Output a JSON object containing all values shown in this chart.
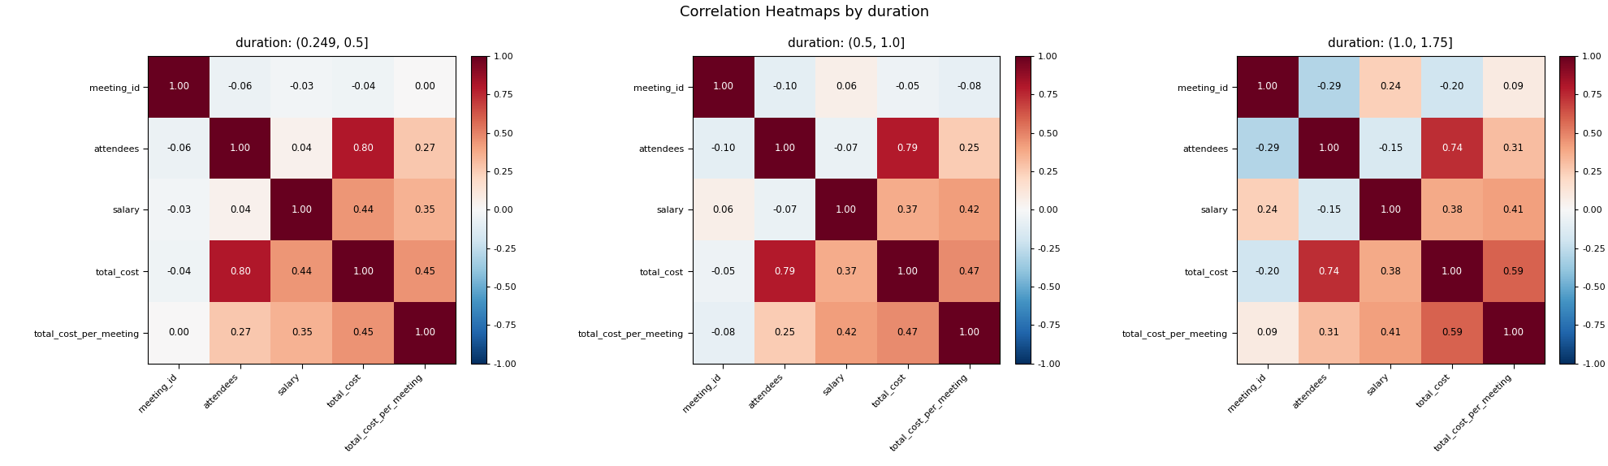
{
  "title": "Correlation Heatmaps by duration",
  "labels": [
    "meeting_id",
    "attendees",
    "salary",
    "total_cost",
    "total_cost_per_meeting"
  ],
  "subplots": [
    {
      "subtitle": "duration: (0.249, 0.5]",
      "matrix": [
        [
          1.0,
          -0.06,
          -0.03,
          -0.04,
          0.0
        ],
        [
          -0.06,
          1.0,
          0.04,
          0.8,
          0.27
        ],
        [
          -0.03,
          0.04,
          1.0,
          0.44,
          0.35
        ],
        [
          -0.04,
          0.8,
          0.44,
          1.0,
          0.45
        ],
        [
          0.0,
          0.27,
          0.35,
          0.45,
          1.0
        ]
      ]
    },
    {
      "subtitle": "duration: (0.5, 1.0]",
      "matrix": [
        [
          1.0,
          -0.1,
          0.06,
          -0.05,
          -0.08
        ],
        [
          -0.1,
          1.0,
          -0.07,
          0.79,
          0.25
        ],
        [
          0.06,
          -0.07,
          1.0,
          0.37,
          0.42
        ],
        [
          -0.05,
          0.79,
          0.37,
          1.0,
          0.47
        ],
        [
          -0.08,
          0.25,
          0.42,
          0.47,
          1.0
        ]
      ]
    },
    {
      "subtitle": "duration: (1.0, 1.75]",
      "matrix": [
        [
          1.0,
          -0.29,
          0.24,
          -0.2,
          0.09
        ],
        [
          -0.29,
          1.0,
          -0.15,
          0.74,
          0.31
        ],
        [
          0.24,
          -0.15,
          1.0,
          0.38,
          0.41
        ],
        [
          -0.2,
          0.74,
          0.38,
          1.0,
          0.59
        ],
        [
          0.09,
          0.31,
          0.41,
          0.59,
          1.0
        ]
      ]
    }
  ],
  "cmap": "RdBu_r",
  "vmin": -1.0,
  "vmax": 1.0,
  "title_fontsize": 13,
  "subtitle_fontsize": 11,
  "annot_fontsize": 8.5,
  "tick_fontsize": 8,
  "cbar_tick_fontsize": 8,
  "figsize": [
    19.81,
    5.74
  ],
  "dpi": 100
}
